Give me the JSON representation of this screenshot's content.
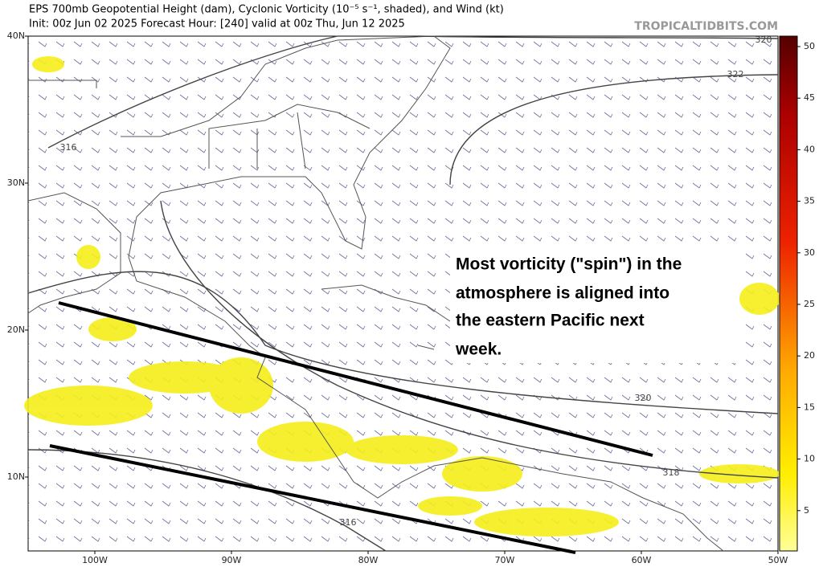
{
  "header": {
    "title": "EPS 700mb Geopotential Height (dam), Cyclonic Vorticity (10⁻⁵ s⁻¹, shaded), and Wind (kt)",
    "subtitle": "Init: 00z Jun 02 2025   Forecast Hour: [240]   valid at 00z Thu, Jun 12 2025",
    "watermark": "TROPICALTIDBITS.COM"
  },
  "map": {
    "lat_labels": [
      "40N",
      "30N",
      "20N",
      "10N"
    ],
    "lon_labels": [
      "100W",
      "90W",
      "80W",
      "70W",
      "60W",
      "50W"
    ],
    "contour_labels": [
      "316",
      "320",
      "322",
      "320",
      "318",
      "316"
    ],
    "annotation": [
      "Most vorticity (\"spin\") in the",
      "atmosphere is aligned into",
      "the eastern Pacific next",
      "week."
    ]
  },
  "colorbar": {
    "ticks": [
      "50",
      "45",
      "40",
      "35",
      "30",
      "25",
      "20",
      "15",
      "10",
      "5"
    ]
  }
}
